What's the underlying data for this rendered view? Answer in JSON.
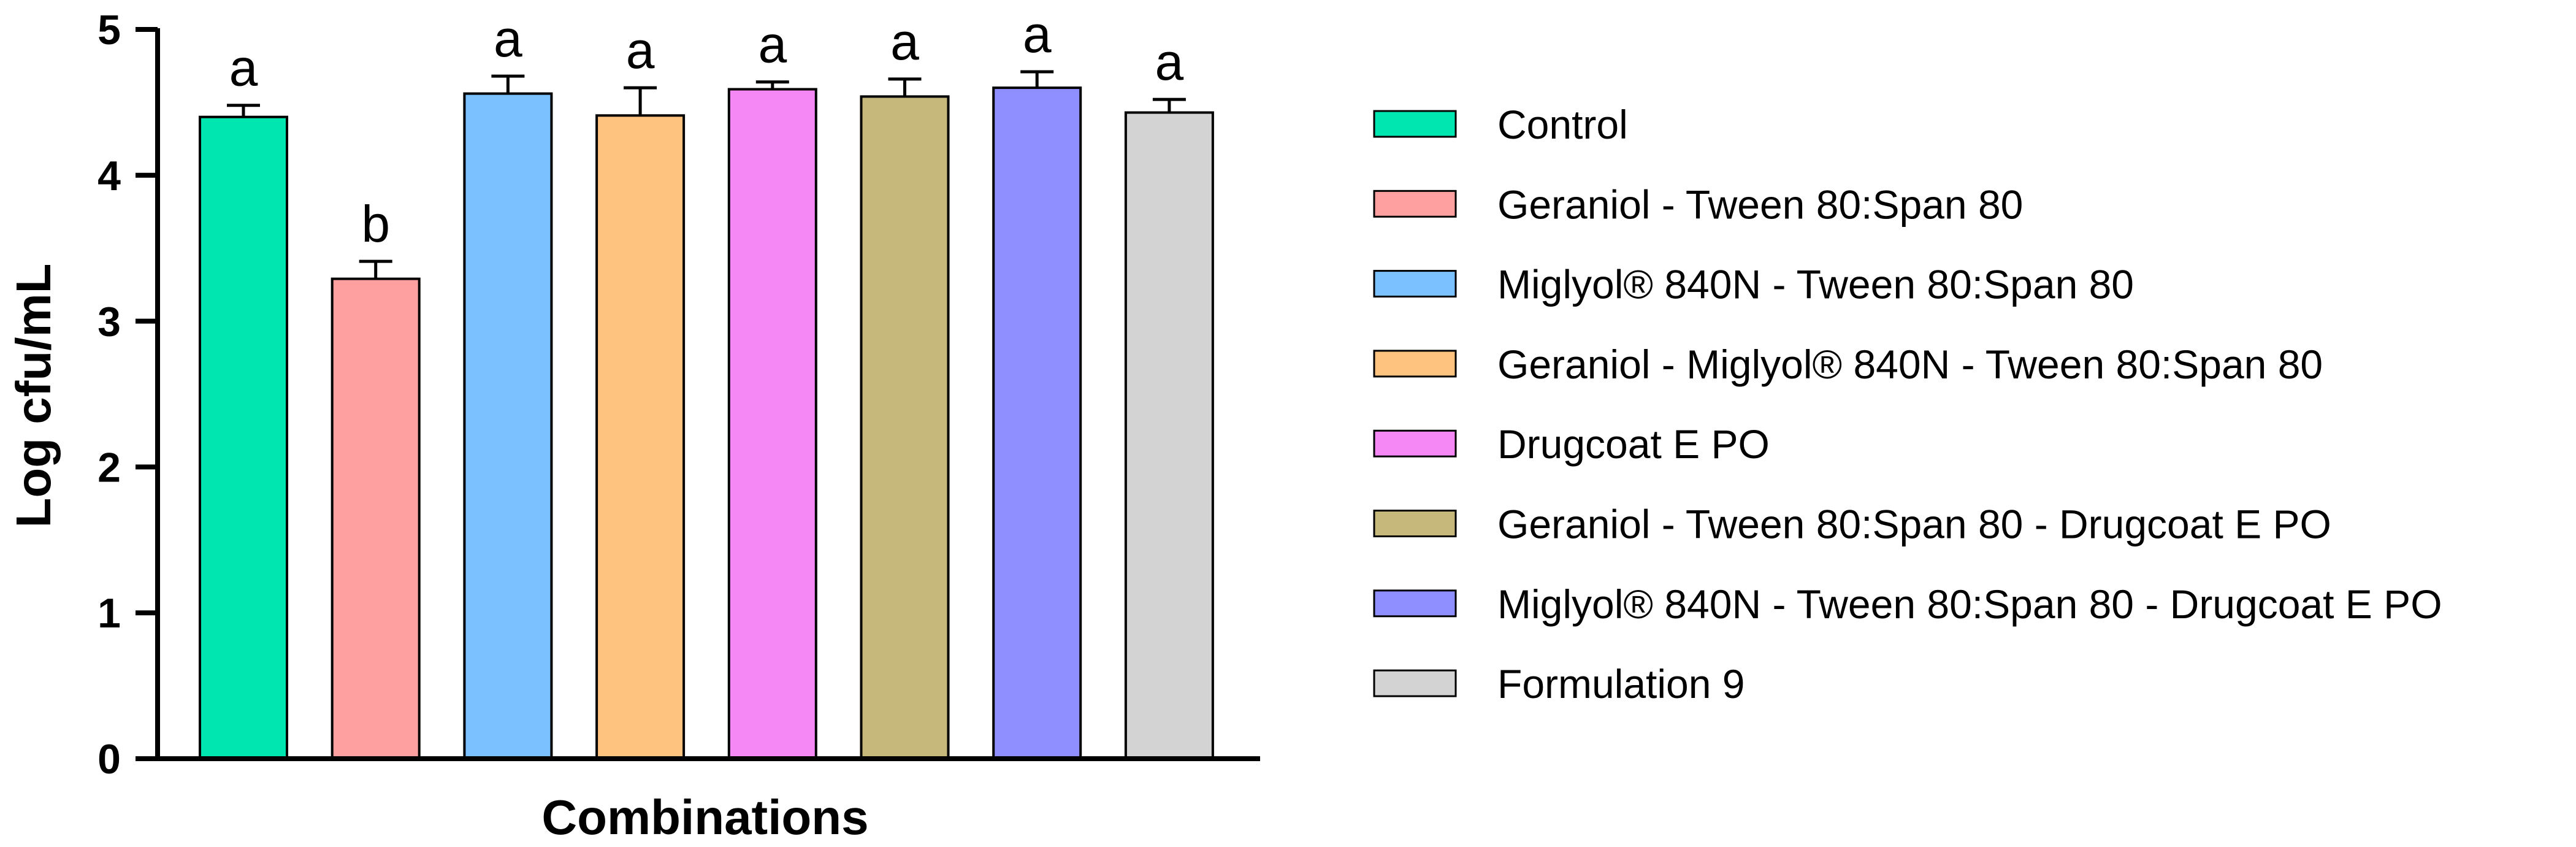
{
  "chart_data": {
    "type": "bar",
    "title": "",
    "xlabel": "Combinations",
    "ylabel": "Log cfu/mL",
    "ylim": [
      0,
      5
    ],
    "yticks": [
      0,
      1,
      2,
      3,
      4,
      5
    ],
    "grid": false,
    "legend_position": "right",
    "categories": [
      "Control",
      "Geraniol - Tween 80:Span 80",
      "Miglyol® 840N - Tween 80:Span 80",
      "Geraniol - Miglyol® 840N - Tween 80:Span 80",
      "Drugcoat E PO",
      "Geraniol - Tween 80:Span 80 - Drugcoat E PO",
      "Miglyol® 840N - Tween 80:Span 80 - Drugcoat E PO",
      "Formulation 9"
    ],
    "values": [
      4.4,
      3.29,
      4.56,
      4.41,
      4.59,
      4.54,
      4.6,
      4.43
    ],
    "errors": [
      0.08,
      0.12,
      0.12,
      0.19,
      0.05,
      0.12,
      0.11,
      0.09
    ],
    "significance": [
      "a",
      "b",
      "a",
      "a",
      "a",
      "a",
      "a",
      "a"
    ],
    "colors": [
      "#00E6B0",
      "#FFA0A0",
      "#7BC1FF",
      "#FFC380",
      "#F588F5",
      "#C6B87A",
      "#8F8FFF",
      "#D3D3D3"
    ]
  }
}
